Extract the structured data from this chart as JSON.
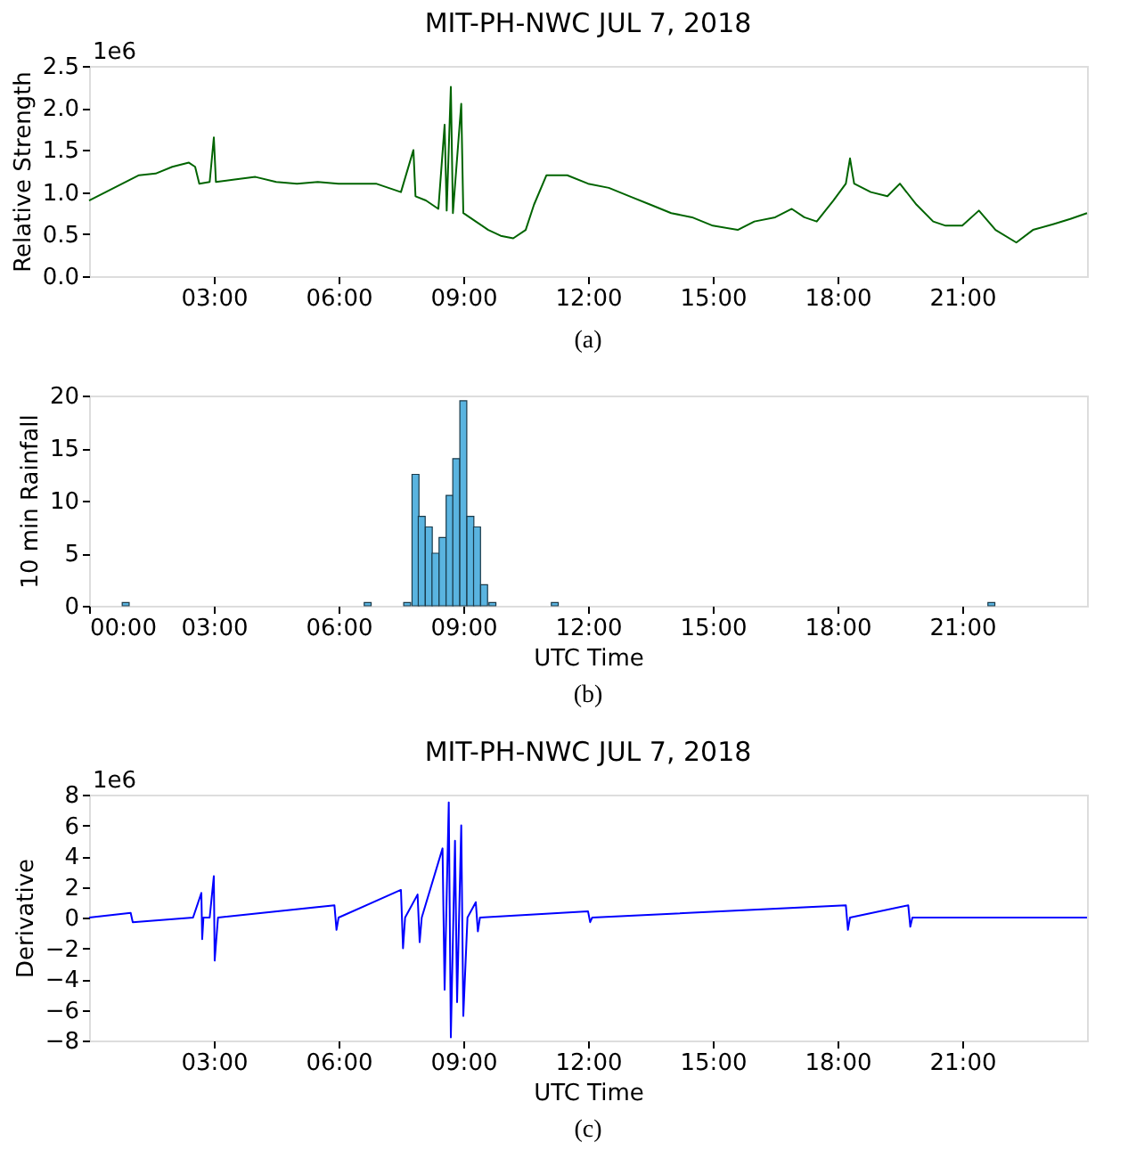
{
  "chart_data": [
    {
      "type": "line",
      "title": "MIT-PH-NWC JUL 7, 2018",
      "ylabel": "Relative Strength",
      "annotations": [
        "1e6",
        "(a)"
      ],
      "grid": false,
      "legend": false,
      "xlim": [
        0,
        24
      ],
      "xticks": [
        {
          "value": 3,
          "label": "03:00"
        },
        {
          "value": 6,
          "label": "06:00"
        },
        {
          "value": 9,
          "label": "09:00"
        },
        {
          "value": 12,
          "label": "12:00"
        },
        {
          "value": 15,
          "label": "15:00"
        },
        {
          "value": 18,
          "label": "18:00"
        },
        {
          "value": 21,
          "label": "21:00"
        }
      ],
      "ylim": [
        0,
        2.5
      ],
      "yticks": [
        {
          "value": 0,
          "label": "0.0"
        },
        {
          "value": 0.5,
          "label": "0.5"
        },
        {
          "value": 1,
          "label": "1.0"
        },
        {
          "value": 1.5,
          "label": "1.5"
        },
        {
          "value": 2,
          "label": "2.0"
        },
        {
          "value": 2.5,
          "label": "2.5"
        }
      ],
      "series": [
        {
          "color": "#006400",
          "x": [
            0,
            0.4,
            0.8,
            1.2,
            1.6,
            2.0,
            2.4,
            2.55,
            2.65,
            2.9,
            3.0,
            3.05,
            3.5,
            4.0,
            4.5,
            5.0,
            5.5,
            6.0,
            6.5,
            6.9,
            7.2,
            7.5,
            7.8,
            7.85,
            8.1,
            8.4,
            8.55,
            8.6,
            8.7,
            8.75,
            8.95,
            9.0,
            9.3,
            9.6,
            9.9,
            10.2,
            10.5,
            10.7,
            11.0,
            11.5,
            12.0,
            12.5,
            13.0,
            13.5,
            14.0,
            14.5,
            15.0,
            15.6,
            16.0,
            16.5,
            16.9,
            17.2,
            17.5,
            17.9,
            18.2,
            18.3,
            18.4,
            18.8,
            19.2,
            19.5,
            19.9,
            20.3,
            20.6,
            21.0,
            21.4,
            21.8,
            22.3,
            22.7,
            23.2,
            23.6,
            24.0
          ],
          "values": [
            0.9,
            1.0,
            1.1,
            1.2,
            1.22,
            1.3,
            1.35,
            1.3,
            1.1,
            1.12,
            1.65,
            1.12,
            1.15,
            1.18,
            1.12,
            1.1,
            1.12,
            1.1,
            1.1,
            1.1,
            1.05,
            1.0,
            1.5,
            0.95,
            0.9,
            0.8,
            1.8,
            0.78,
            2.25,
            0.75,
            2.05,
            0.75,
            0.65,
            0.55,
            0.48,
            0.45,
            0.55,
            0.85,
            1.2,
            1.2,
            1.1,
            1.05,
            0.95,
            0.85,
            0.75,
            0.7,
            0.6,
            0.55,
            0.65,
            0.7,
            0.8,
            0.7,
            0.65,
            0.9,
            1.1,
            1.4,
            1.1,
            1.0,
            0.95,
            1.1,
            0.85,
            0.65,
            0.6,
            0.6,
            0.78,
            0.55,
            0.4,
            0.55,
            0.62,
            0.68,
            0.75
          ]
        }
      ]
    },
    {
      "type": "bar",
      "xlabel": "UTC Time",
      "ylabel": "10 min Rainfall",
      "annotations": [
        "(b)"
      ],
      "grid": false,
      "legend": false,
      "xlim": [
        0,
        24
      ],
      "xticks": [
        {
          "value": 0,
          "label": "00:00"
        },
        {
          "value": 3,
          "label": "03:00"
        },
        {
          "value": 6,
          "label": "06:00"
        },
        {
          "value": 9,
          "label": "09:00"
        },
        {
          "value": 12,
          "label": "12:00"
        },
        {
          "value": 15,
          "label": "15:00"
        },
        {
          "value": 18,
          "label": "18:00"
        },
        {
          "value": 21,
          "label": "21:00"
        }
      ],
      "ylim": [
        0,
        20
      ],
      "yticks": [
        0,
        5,
        10,
        15,
        20
      ],
      "series": [
        {
          "color": "#5ab4e0",
          "x": [
            0.88,
            6.7,
            7.65,
            7.85,
            8.0,
            8.17,
            8.33,
            8.5,
            8.67,
            8.83,
            9.0,
            9.17,
            9.33,
            9.5,
            9.7,
            11.2,
            21.7
          ],
          "values": [
            0.3,
            0.3,
            0.3,
            12.5,
            8.5,
            7.5,
            5,
            6.5,
            10.5,
            14,
            19.5,
            8.5,
            7.5,
            2,
            0.3,
            0.3,
            0.3
          ]
        }
      ]
    },
    {
      "type": "line",
      "title": "MIT-PH-NWC JUL 7, 2018",
      "xlabel": "UTC Time",
      "ylabel": "Derivative",
      "annotations": [
        "1e6",
        "(c)"
      ],
      "grid": false,
      "legend": false,
      "xlim": [
        0,
        24
      ],
      "xticks": [
        {
          "value": 3,
          "label": "03:00"
        },
        {
          "value": 6,
          "label": "06:00"
        },
        {
          "value": 9,
          "label": "09:00"
        },
        {
          "value": 12,
          "label": "12:00"
        },
        {
          "value": 15,
          "label": "15:00"
        },
        {
          "value": 18,
          "label": "18:00"
        },
        {
          "value": 21,
          "label": "21:00"
        }
      ],
      "ylim": [
        -8,
        8
      ],
      "yticks": [
        -8,
        -6,
        -4,
        -2,
        0,
        2,
        4,
        6,
        8
      ],
      "series": [
        {
          "color": "#0000ff",
          "x": [
            0,
            1.0,
            1.05,
            2.5,
            2.7,
            2.72,
            2.75,
            2.9,
            3.0,
            3.02,
            3.1,
            5.9,
            5.95,
            6.0,
            7.5,
            7.55,
            7.6,
            7.9,
            7.95,
            8.0,
            8.5,
            8.55,
            8.65,
            8.7,
            8.8,
            8.85,
            8.95,
            9.0,
            9.1,
            9.3,
            9.35,
            9.4,
            12.0,
            12.05,
            12.1,
            18.2,
            18.25,
            18.3,
            19.7,
            19.75,
            19.8,
            24.0
          ],
          "values": [
            0,
            0.3,
            -0.3,
            0,
            1.6,
            -1.4,
            0,
            0,
            2.7,
            -2.8,
            0,
            0.8,
            -0.8,
            0,
            1.8,
            -2,
            0,
            1.5,
            -1.6,
            0,
            4.5,
            -4.7,
            7.5,
            -7.8,
            5,
            -5.5,
            6,
            -6.4,
            0,
            1,
            -0.9,
            0,
            0.4,
            -0.3,
            0,
            0.8,
            -0.8,
            0,
            0.8,
            -0.6,
            0,
            0
          ]
        }
      ]
    }
  ]
}
